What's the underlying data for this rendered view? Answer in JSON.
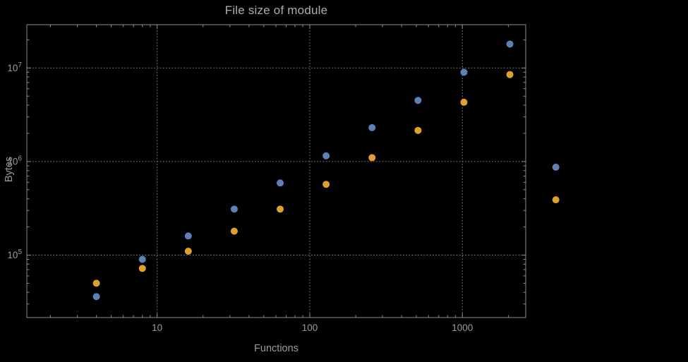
{
  "chart_data": {
    "type": "scatter",
    "title": "File size of module",
    "xlabel": "Functions",
    "ylabel": "Bytes",
    "xscale": "log",
    "yscale": "log",
    "xlim": [
      1.4,
      2600
    ],
    "ylim": [
      21500,
      29000000
    ],
    "x_ticks": [
      10,
      100,
      1000
    ],
    "y_ticks": [
      100000,
      1000000,
      10000000
    ],
    "grid": "dotted",
    "legend_position": "none",
    "background_color": "#000000",
    "frame_color": "#8d8d8d",
    "grid_color": "#7f7f7f",
    "text_color": "#9b9b9b",
    "x": [
      4,
      8,
      16,
      32,
      64,
      128,
      256,
      512,
      1024,
      2048,
      4096
    ],
    "series": [
      {
        "name": "series-1-blue",
        "color": "#5e81b5",
        "values": [
          36000,
          90000,
          160000,
          310000,
          590000,
          1150000,
          2300000,
          4500000,
          9000000,
          18000000,
          870000
        ]
      },
      {
        "name": "series-2-orange",
        "color": "#e0a030",
        "values": [
          50000,
          72000,
          110000,
          180000,
          310000,
          570000,
          1100000,
          2150000,
          4300000,
          8500000,
          390000
        ]
      }
    ]
  }
}
